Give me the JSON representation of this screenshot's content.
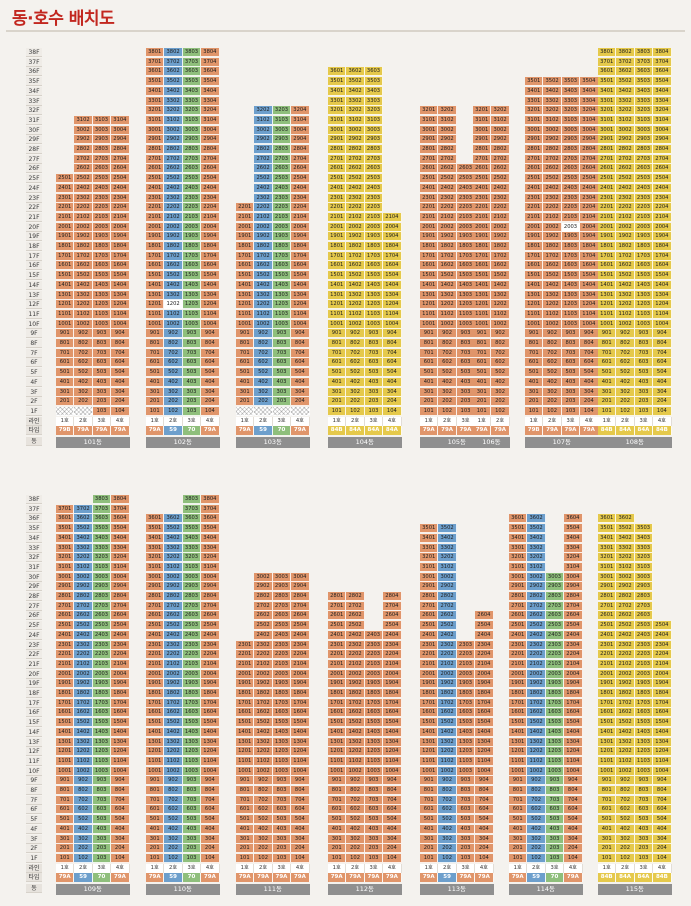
{
  "title": "동·호수 배치도",
  "colors": {
    "59": "#6d9fcc",
    "70": "#8fbf7c",
    "79A": "#e0956a",
    "79B": "#e0956a",
    "84A": "#e5c94b",
    "84B": "#e5c94b",
    "white": "#ffffff"
  },
  "row_labels": {
    "line": "라인",
    "type": "타입",
    "dong": "동"
  },
  "floor_labels": [
    "38F",
    "37F",
    "36F",
    "35F",
    "34F",
    "33F",
    "32F",
    "31F",
    "30F",
    "29F",
    "28F",
    "27F",
    "26F",
    "25F",
    "24F",
    "23F",
    "22F",
    "21F",
    "20F",
    "19F",
    "18F",
    "17F",
    "16F",
    "15F",
    "14F",
    "13F",
    "12F",
    "11F",
    "10F",
    "9F",
    "8F",
    "7F",
    "6F",
    "5F",
    "4F",
    "3F",
    "2F",
    "1F"
  ],
  "pilot_text": "필로티",
  "ghost_text": "임대",
  "top": {
    "buildings": [
      {
        "name": "101동",
        "top_floors": [
          25,
          31,
          31,
          31
        ],
        "types": [
          "79B",
          "79A",
          "79A",
          "79A"
        ],
        "piloti": [
          0,
          1,
          1,
          1
        ],
        "whites": []
      },
      {
        "name": "102동",
        "top_floors": [
          38,
          38,
          38,
          38
        ],
        "types": [
          "79A",
          "59",
          "70",
          "79A"
        ],
        "piloti": [],
        "whites": [
          "12-2"
        ]
      },
      {
        "name": "103동",
        "top_floors": [
          22,
          32,
          32,
          32
        ],
        "types": [
          "79A",
          "59",
          "70",
          "79A"
        ],
        "piloti": [
          0,
          1,
          2,
          3
        ],
        "whites": []
      },
      {
        "name": "104동",
        "top_floors": [
          36,
          36,
          36,
          21
        ],
        "types": [
          "84B",
          "84A",
          "84A",
          "84A"
        ],
        "piloti": [],
        "whites": []
      },
      {
        "name": "105동",
        "top_floors": [
          32,
          32,
          26,
          26
        ],
        "types": [
          "79A",
          "79A",
          "79A",
          "79B"
        ],
        "piloti": [],
        "whites": []
      },
      {
        "name": "106동",
        "top_floors": [
          32,
          32
        ],
        "types": [
          "79A",
          "79A"
        ],
        "piloti": [],
        "whites": []
      },
      {
        "name": "107동",
        "top_floors": [
          35,
          35,
          35,
          35
        ],
        "types": [
          "79B",
          "79A",
          "79A",
          "79A"
        ],
        "piloti": [],
        "whites": [
          "20-3"
        ]
      },
      {
        "name": "108동",
        "top_floors": [
          38,
          38,
          38,
          38
        ],
        "types": [
          "84B",
          "84A",
          "84A",
          "84B"
        ],
        "piloti": [],
        "whites": []
      }
    ]
  },
  "bottom": {
    "buildings": [
      {
        "name": "109동",
        "top_floors": [
          37,
          37,
          38,
          38
        ],
        "types": [
          "79A",
          "59",
          "70",
          "79A"
        ],
        "piloti": [],
        "whites": []
      },
      {
        "name": "110동",
        "top_floors": [
          36,
          36,
          38,
          38
        ],
        "types": [
          "79A",
          "59",
          "70",
          "79A"
        ],
        "piloti": [],
        "whites": []
      },
      {
        "name": "111동",
        "top_floors": [
          23,
          30,
          30,
          30
        ],
        "types": [
          "79A",
          "79A",
          "79A",
          "79A"
        ],
        "piloti": [],
        "whites": []
      },
      {
        "name": "112동",
        "top_floors": [
          28,
          28,
          24,
          28
        ],
        "types": [
          "79A",
          "79A",
          "79A",
          "79A"
        ],
        "piloti": [],
        "whites": []
      },
      {
        "name": "113동",
        "top_floors": [
          35,
          35,
          23,
          26
        ],
        "types": [
          "79A",
          "59",
          "79A",
          "79A"
        ],
        "piloti": [],
        "whites": []
      },
      {
        "name": "114동",
        "top_floors": [
          36,
          36,
          30,
          36
        ],
        "types": [
          "79A",
          "59",
          "70",
          "79A"
        ],
        "piloti": [],
        "whites": []
      },
      {
        "name": "115동",
        "top_floors": [
          36,
          36,
          35,
          25
        ],
        "types": [
          "84B",
          "84A",
          "84A",
          "84B"
        ],
        "piloti": [],
        "whites": []
      }
    ]
  }
}
